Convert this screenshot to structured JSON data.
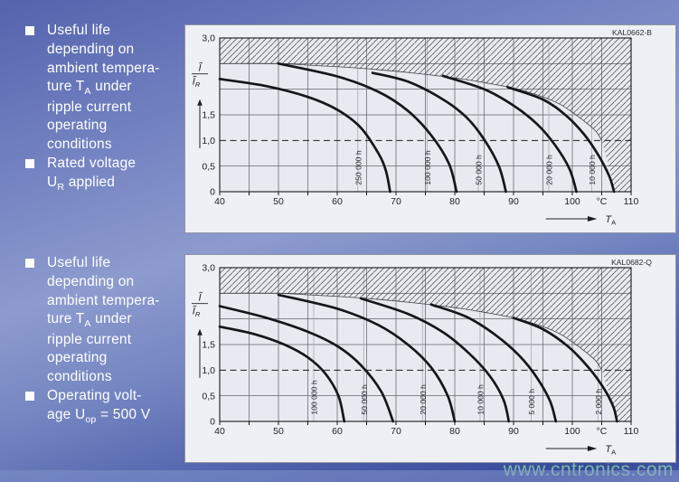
{
  "watermark": "www.cntronics.com",
  "colors": {
    "page_gradient_top": "#5463ad",
    "page_gradient_mid": "#8d9bce",
    "page_gradient_bottom": "#37489a",
    "chart_box_bg": "#eef0f5",
    "plot_bg": "#e8eaf1",
    "curve": "#15161a",
    "grid": "#63666e",
    "hatch_line": "#3c3c40",
    "note_text": "#ffffff",
    "watermark_green": "#82c6a6"
  },
  "notes": [
    {
      "bullets": [
        {
          "lines": [
            "Useful life",
            "depending on",
            "ambient tempera-",
            "ture T_[A] under",
            "ripple current",
            "operating",
            "conditions"
          ]
        },
        {
          "lines": [
            "Rated voltage",
            "U_[R] applied"
          ]
        }
      ]
    },
    {
      "bullets": [
        {
          "lines": [
            "Useful life",
            "depending on",
            "ambient tempera-",
            "ture T_[A] under",
            "ripple current",
            "operating",
            "conditions"
          ]
        },
        {
          "lines": [
            "Operating volt-",
            "age U_[op] = 500 V"
          ]
        }
      ]
    }
  ],
  "chart_data": [
    {
      "type": "line",
      "id_label": "KAL0662-B",
      "xlabel": {
        "arrow": "→",
        "base": "T",
        "sub": "A"
      },
      "ylabel": {
        "num": "Ĩ",
        "den": "Ĩ",
        "den_sub": "R"
      },
      "xlim": [
        40,
        110
      ],
      "ylim": [
        0,
        3
      ],
      "x_gridstep": 5,
      "y_gridstep": 0.5,
      "x_ticks": [
        {
          "v": 40,
          "label": "40"
        },
        {
          "v": 50,
          "label": "50"
        },
        {
          "v": 60,
          "label": "60"
        },
        {
          "v": 70,
          "label": "70"
        },
        {
          "v": 80,
          "label": "80"
        },
        {
          "v": 90,
          "label": "90"
        },
        {
          "v": 100,
          "label": "100"
        },
        {
          "v": 105,
          "label": "°C"
        },
        {
          "v": 110,
          "label": "110"
        }
      ],
      "y_ticks": [
        {
          "v": 3,
          "label": "3,0"
        },
        {
          "v": 1.5,
          "label": "1,5"
        },
        {
          "v": 1,
          "label": "1,0"
        },
        {
          "v": 0.5,
          "label": "0,5"
        },
        {
          "v": 0,
          "label": "0"
        }
      ],
      "dashed_line_y": 1.0,
      "forbidden_region_boundary": [
        [
          40,
          2.5
        ],
        [
          50,
          2.5
        ],
        [
          55,
          2.47
        ],
        [
          60,
          2.44
        ],
        [
          65,
          2.4
        ],
        [
          70,
          2.35
        ],
        [
          75,
          2.29
        ],
        [
          80,
          2.22
        ],
        [
          85,
          2.13
        ],
        [
          90,
          2.02
        ],
        [
          95,
          1.85
        ],
        [
          98,
          1.7
        ],
        [
          100,
          1.55
        ],
        [
          102,
          1.38
        ],
        [
          104,
          1.18
        ],
        [
          105,
          1.0
        ]
      ],
      "forbidden_region_close": [
        [
          105.8,
          0.68
        ],
        [
          106.6,
          0.34
        ],
        [
          107.1,
          0
        ],
        [
          110,
          0
        ],
        [
          110,
          3
        ],
        [
          40,
          3
        ]
      ],
      "series": [
        {
          "name": "250 000 h",
          "label_x": 63.5,
          "points": [
            [
              40,
              2.2
            ],
            [
              48,
              2.06
            ],
            [
              55,
              1.85
            ],
            [
              60,
              1.6
            ],
            [
              64,
              1.25
            ],
            [
              67,
              0.75
            ],
            [
              68.3,
              0.4
            ],
            [
              69,
              0
            ]
          ]
        },
        {
          "name": "100 000 h",
          "label_x": 75.3,
          "points": [
            [
              50,
              2.5
            ],
            [
              60,
              2.25
            ],
            [
              67,
              1.95
            ],
            [
              72,
              1.58
            ],
            [
              76,
              1.1
            ],
            [
              79,
              0.55
            ],
            [
              80.3,
              0
            ]
          ]
        },
        {
          "name": "50 000 h",
          "label_x": 84.0,
          "points": [
            [
              66,
              2.32
            ],
            [
              72,
              2.15
            ],
            [
              78,
              1.8
            ],
            [
              82,
              1.45
            ],
            [
              85,
              1.02
            ],
            [
              87.5,
              0.5
            ],
            [
              88.7,
              0
            ]
          ]
        },
        {
          "name": "20 000 h",
          "label_x": 96.0,
          "points": [
            [
              78,
              2.26
            ],
            [
              85,
              2.0
            ],
            [
              90,
              1.68
            ],
            [
              94,
              1.32
            ],
            [
              97,
              0.92
            ],
            [
              99.5,
              0.45
            ],
            [
              100.7,
              0
            ]
          ]
        },
        {
          "name": "10 000 h",
          "label_x": 103.3,
          "points": [
            [
              89,
              2.04
            ],
            [
              95,
              1.8
            ],
            [
              99,
              1.48
            ],
            [
              102,
              1.12
            ],
            [
              104.5,
              0.7
            ],
            [
              106.3,
              0.3
            ],
            [
              107.1,
              0
            ]
          ]
        }
      ]
    },
    {
      "type": "line",
      "id_label": "KAL0682-Q",
      "xlabel": {
        "arrow": "→",
        "base": "T",
        "sub": "A"
      },
      "ylabel": {
        "num": "Ĩ",
        "den": "Ĩ",
        "den_sub": "R"
      },
      "xlim": [
        40,
        110
      ],
      "ylim": [
        0,
        3
      ],
      "x_gridstep": 5,
      "y_gridstep": 0.5,
      "x_ticks": [
        {
          "v": 40,
          "label": "40"
        },
        {
          "v": 50,
          "label": "50"
        },
        {
          "v": 60,
          "label": "60"
        },
        {
          "v": 70,
          "label": "70"
        },
        {
          "v": 80,
          "label": "80"
        },
        {
          "v": 90,
          "label": "90"
        },
        {
          "v": 100,
          "label": "100"
        },
        {
          "v": 105,
          "label": "°C"
        },
        {
          "v": 110,
          "label": "110"
        }
      ],
      "y_ticks": [
        {
          "v": 3,
          "label": "3,0"
        },
        {
          "v": 1.5,
          "label": "1,5"
        },
        {
          "v": 1,
          "label": "1,0"
        },
        {
          "v": 0.5,
          "label": "0,5"
        },
        {
          "v": 0,
          "label": "0"
        }
      ],
      "dashed_line_y": 1.0,
      "forbidden_region_boundary": [
        [
          40,
          2.5
        ],
        [
          50,
          2.5
        ],
        [
          55,
          2.47
        ],
        [
          60,
          2.44
        ],
        [
          65,
          2.4
        ],
        [
          70,
          2.35
        ],
        [
          75,
          2.29
        ],
        [
          80,
          2.22
        ],
        [
          85,
          2.13
        ],
        [
          90,
          2.02
        ],
        [
          95,
          1.85
        ],
        [
          98,
          1.7
        ],
        [
          100,
          1.55
        ],
        [
          102,
          1.38
        ],
        [
          104,
          1.18
        ],
        [
          105,
          1.0
        ]
      ],
      "forbidden_region_close": [
        [
          106,
          0.64
        ],
        [
          107,
          0.3
        ],
        [
          107.6,
          0
        ],
        [
          110,
          0
        ],
        [
          110,
          3
        ],
        [
          40,
          3
        ]
      ],
      "series": [
        {
          "name": "100 000 h",
          "label_x": 56.0,
          "points": [
            [
              40,
              1.85
            ],
            [
              46,
              1.7
            ],
            [
              51,
              1.5
            ],
            [
              55,
              1.25
            ],
            [
              58,
              0.93
            ],
            [
              60.2,
              0.5
            ],
            [
              61.2,
              0
            ]
          ]
        },
        {
          "name": "50 000 h",
          "label_x": 64.5,
          "points": [
            [
              40,
              2.25
            ],
            [
              48,
              2.02
            ],
            [
              55,
              1.75
            ],
            [
              60,
              1.47
            ],
            [
              64,
              1.1
            ],
            [
              67.5,
              0.58
            ],
            [
              69.5,
              0
            ]
          ]
        },
        {
          "name": "20 000 h",
          "label_x": 74.5,
          "points": [
            [
              50,
              2.47
            ],
            [
              60,
              2.2
            ],
            [
              67,
              1.88
            ],
            [
              72,
              1.5
            ],
            [
              76,
              1.05
            ],
            [
              78.8,
              0.5
            ],
            [
              80,
              0
            ]
          ]
        },
        {
          "name": "10 000 h",
          "label_x": 84.3,
          "points": [
            [
              64,
              2.4
            ],
            [
              72,
              2.1
            ],
            [
              78,
              1.74
            ],
            [
              82.5,
              1.32
            ],
            [
              86,
              0.88
            ],
            [
              88.3,
              0.42
            ],
            [
              89.2,
              0
            ]
          ]
        },
        {
          "name": "5 000 h",
          "label_x": 93.0,
          "points": [
            [
              76,
              2.28
            ],
            [
              82,
              2.04
            ],
            [
              87,
              1.68
            ],
            [
              91,
              1.28
            ],
            [
              94,
              0.85
            ],
            [
              96.2,
              0.4
            ],
            [
              97.2,
              0
            ]
          ]
        },
        {
          "name": "2 000 h",
          "label_x": 104.4,
          "points": [
            [
              90,
              2.02
            ],
            [
              95,
              1.8
            ],
            [
              99.5,
              1.44
            ],
            [
              103,
              1.02
            ],
            [
              105.5,
              0.62
            ],
            [
              107,
              0.28
            ],
            [
              107.6,
              0
            ]
          ]
        }
      ]
    }
  ]
}
